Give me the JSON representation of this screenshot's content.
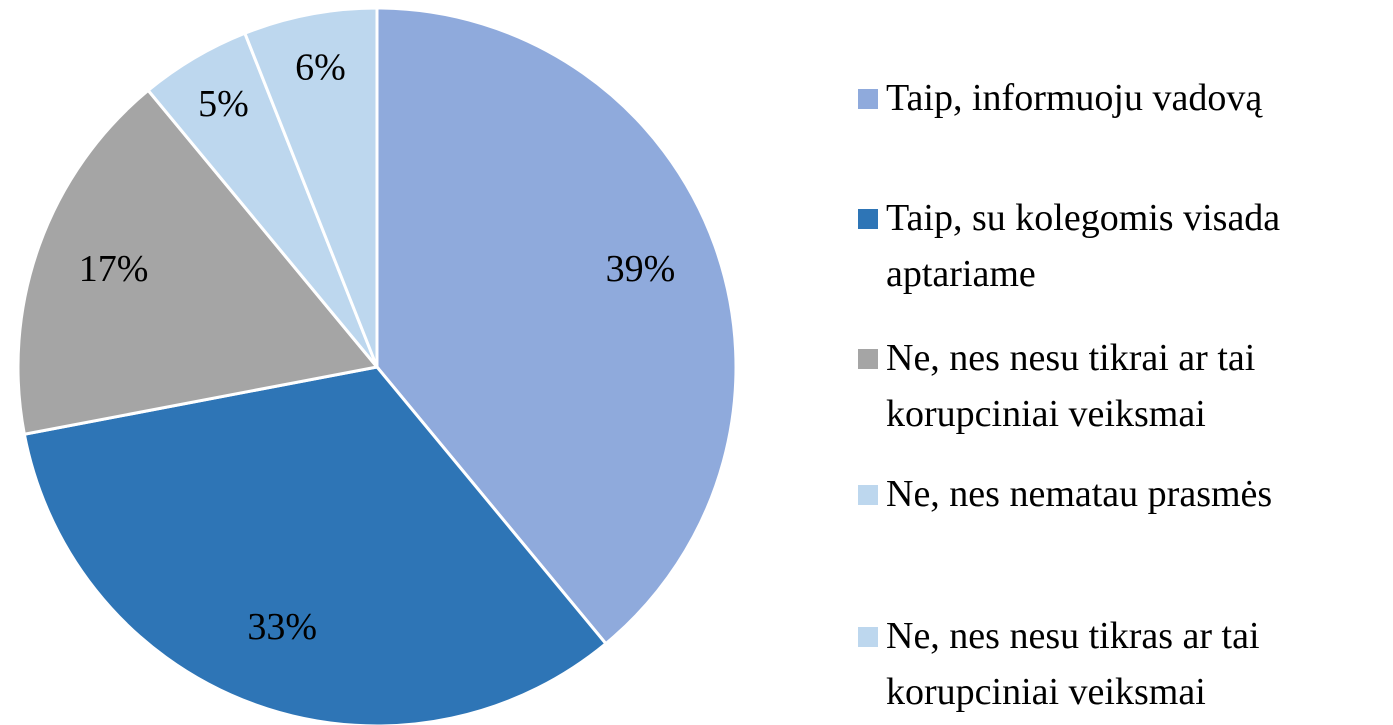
{
  "chart_data": {
    "type": "pie",
    "categories": [
      "Taip, informuoju vadovą",
      "Taip, su kolegomis visada aptariame",
      "Ne, nes nesu tikrai ar tai korupciniai veiksmai",
      "Ne, nes nematau prasmės",
      "Ne, nes nesu tikras ar tai korupciniai veiksmai"
    ],
    "values": [
      39,
      33,
      17,
      5,
      6
    ],
    "value_labels": [
      "39%",
      "33%",
      "17%",
      "5%",
      "6%"
    ],
    "colors": [
      "#8faadc",
      "#2e75b6",
      "#a5a5a5",
      "#bdd7ee",
      "#bdd7ee"
    ],
    "legend": "right"
  }
}
